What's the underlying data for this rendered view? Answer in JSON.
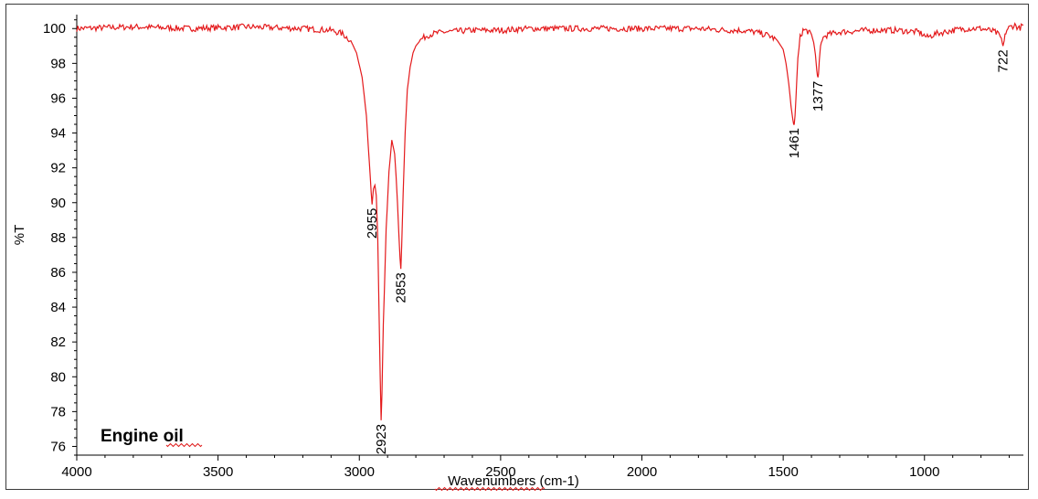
{
  "chart_data": {
    "type": "line",
    "title": "",
    "xlabel": "Wavenumbers (cm-1)",
    "ylabel": "%T",
    "annotation": "Engine oil",
    "xlim": [
      4000,
      650
    ],
    "ylim": [
      75.5,
      100.8
    ],
    "x_reversed": true,
    "grid": false,
    "line_color": "#e41a1c",
    "xticks": [
      4000,
      3500,
      3000,
      2500,
      2000,
      1500,
      1000
    ],
    "yticks": [
      76,
      78,
      80,
      82,
      84,
      86,
      88,
      90,
      92,
      94,
      96,
      98,
      100
    ],
    "series": [
      {
        "x": [
          4000,
          3800,
          3600,
          3400,
          3200,
          3100,
          3060,
          3030,
          3010,
          2990,
          2975,
          2965,
          2958,
          2955,
          2950,
          2945,
          2940,
          2935,
          2930,
          2926,
          2923,
          2920,
          2915,
          2905,
          2895,
          2885,
          2875,
          2870,
          2865,
          2860,
          2856,
          2853,
          2850,
          2845,
          2838,
          2830,
          2820,
          2810,
          2800,
          2780,
          2760,
          2740,
          2700,
          2600,
          2500,
          2400,
          2300,
          2200,
          2100,
          2000,
          1900,
          1800,
          1700,
          1650,
          1600,
          1550,
          1520,
          1500,
          1490,
          1480,
          1472,
          1466,
          1463,
          1461,
          1458,
          1455,
          1448,
          1440,
          1430,
          1420,
          1410,
          1400,
          1392,
          1386,
          1381,
          1379,
          1377,
          1375,
          1372,
          1368,
          1362,
          1350,
          1330,
          1300,
          1200,
          1100,
          1020,
          990,
          960,
          900,
          850,
          800,
          770,
          750,
          735,
          728,
          722,
          718,
          712,
          705,
          695,
          680,
          665,
          650
        ],
        "y": [
          100.0,
          100.1,
          100.0,
          100.1,
          100.0,
          99.9,
          99.7,
          99.3,
          98.6,
          97.2,
          95.0,
          92.4,
          90.6,
          89.9,
          90.8,
          91.0,
          90.4,
          88.0,
          83.5,
          80.0,
          77.5,
          79.0,
          83.0,
          88.5,
          91.8,
          93.6,
          92.8,
          91.5,
          90.0,
          88.2,
          86.8,
          86.2,
          87.5,
          90.5,
          94.0,
          96.5,
          97.8,
          98.6,
          99.0,
          99.4,
          99.6,
          99.7,
          99.8,
          99.9,
          99.9,
          100.0,
          100.0,
          100.0,
          100.0,
          100.0,
          100.0,
          100.0,
          99.9,
          99.9,
          99.8,
          99.6,
          99.3,
          98.8,
          98.0,
          96.8,
          95.5,
          94.8,
          94.5,
          94.5,
          95.0,
          96.0,
          98.3,
          99.5,
          99.9,
          99.9,
          99.8,
          99.6,
          99.2,
          98.5,
          97.6,
          97.3,
          97.2,
          97.4,
          98.2,
          99.0,
          99.4,
          99.6,
          99.7,
          99.8,
          99.9,
          99.9,
          99.8,
          99.5,
          99.7,
          99.9,
          100.0,
          100.0,
          99.9,
          99.8,
          99.6,
          99.4,
          99.0,
          99.3,
          99.8,
          100.0,
          100.1,
          100.2,
          100.0,
          100.2
        ]
      }
    ],
    "peak_labels": [
      {
        "x": 2955,
        "y": 89.9,
        "text": "2955"
      },
      {
        "x": 2923,
        "y": 77.5,
        "text": "2923"
      },
      {
        "x": 2853,
        "y": 86.2,
        "text": "2853"
      },
      {
        "x": 1461,
        "y": 94.5,
        "text": "1461"
      },
      {
        "x": 1377,
        "y": 97.2,
        "text": "1377"
      },
      {
        "x": 722,
        "y": 99.0,
        "text": "722"
      }
    ]
  }
}
